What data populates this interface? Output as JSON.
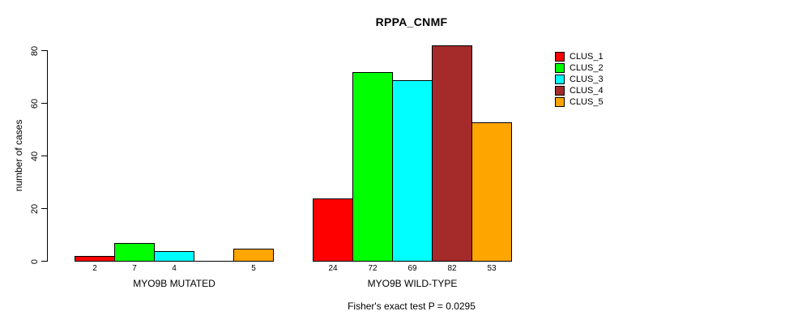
{
  "chart_data": {
    "type": "bar",
    "title": "RPPA_CNMF",
    "ylabel": "number of cases",
    "xlabel": "",
    "footnote": "Fisher's exact test P = 0.0295",
    "ylim": [
      0,
      80
    ],
    "yticks": [
      0,
      20,
      40,
      60,
      80
    ],
    "grid": false,
    "legend_position": "right",
    "background_color": "#ffffff",
    "axis_color": "#000000",
    "categories": [
      "MYO9B MUTATED",
      "MYO9B WILD-TYPE"
    ],
    "series": [
      {
        "name": "CLUS_1",
        "color": "#FF0000",
        "values": [
          2,
          24
        ]
      },
      {
        "name": "CLUS_2",
        "color": "#00FF00",
        "values": [
          7,
          72
        ]
      },
      {
        "name": "CLUS_3",
        "color": "#00FFFF",
        "values": [
          4,
          69
        ]
      },
      {
        "name": "CLUS_4",
        "color": "#A52A2A",
        "values": [
          0,
          82
        ]
      },
      {
        "name": "CLUS_5",
        "color": "#FFA500",
        "values": [
          5,
          53
        ]
      }
    ],
    "bar_labels": [
      [
        "2",
        "7",
        "4",
        "",
        "5"
      ],
      [
        "24",
        "72",
        "69",
        "82",
        "53"
      ]
    ]
  }
}
